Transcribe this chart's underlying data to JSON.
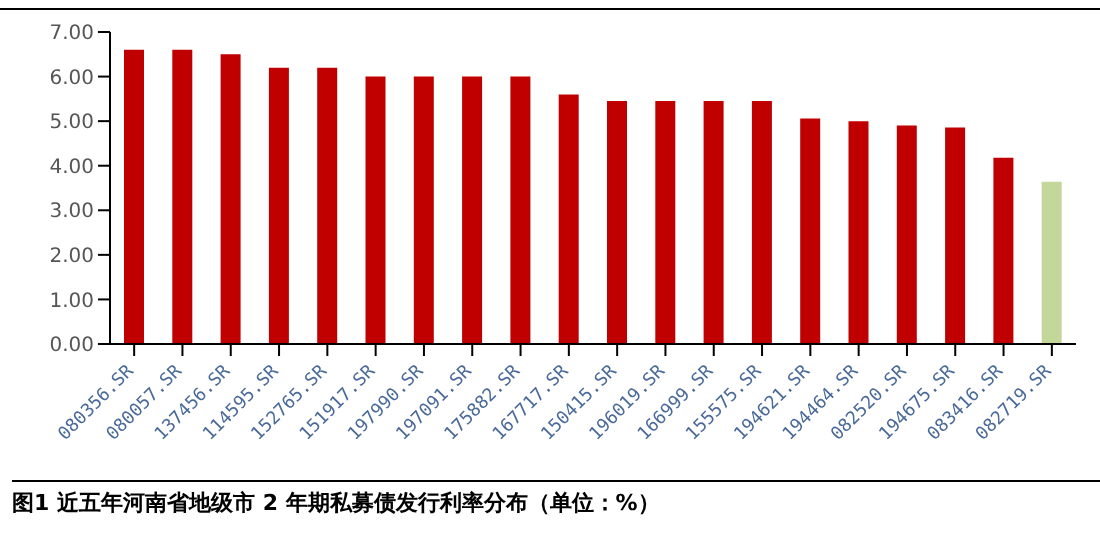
{
  "chart_data": {
    "type": "bar",
    "title": "图1  近五年河南省地级市 2 年期私募债发行利率分布（单位：%）",
    "categories": [
      "080356.SR",
      "080057.SR",
      "137456.SR",
      "114595.SR",
      "152765.SR",
      "151917.SR",
      "197990.SR",
      "197091.SR",
      "175882.SR",
      "167717.SR",
      "150415.SR",
      "196019.SR",
      "166999.SR",
      "155575.SR",
      "194621.SR",
      "194464.SR",
      "082520.SR",
      "194675.SR",
      "083416.SR",
      "082719.SR"
    ],
    "values": [
      6.6,
      6.6,
      6.5,
      6.2,
      6.2,
      6.0,
      6.0,
      6.0,
      6.0,
      5.6,
      5.45,
      5.45,
      5.45,
      5.45,
      5.06,
      5.0,
      4.9,
      4.86,
      4.18,
      3.64
    ],
    "colors": [
      "#c00000",
      "#c00000",
      "#c00000",
      "#c00000",
      "#c00000",
      "#c00000",
      "#c00000",
      "#c00000",
      "#c00000",
      "#c00000",
      "#c00000",
      "#c00000",
      "#c00000",
      "#c00000",
      "#c00000",
      "#c00000",
      "#c00000",
      "#c00000",
      "#c00000",
      "#c4d79b"
    ],
    "ylim": [
      0,
      7
    ],
    "yticks": [
      {
        "value": 0,
        "label": "0.00"
      },
      {
        "value": 1,
        "label": "1.00"
      },
      {
        "value": 2,
        "label": "2.00"
      },
      {
        "value": 3,
        "label": "3.00"
      },
      {
        "value": 4,
        "label": "4.00"
      },
      {
        "value": 5,
        "label": "5.00"
      },
      {
        "value": 6,
        "label": "6.00"
      },
      {
        "value": 7,
        "label": "7.00"
      }
    ],
    "grid": false,
    "legend": false
  }
}
